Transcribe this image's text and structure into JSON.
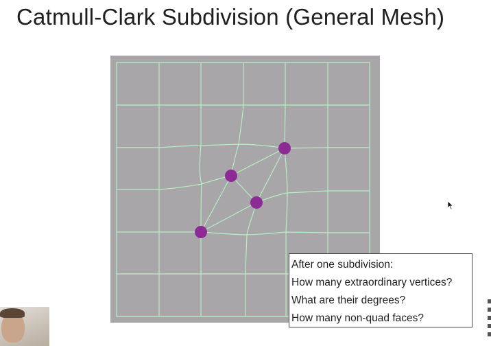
{
  "title": "Catmull-Clark Subdivision (General Mesh)",
  "colors": {
    "mesh_background": "#a8a6a9",
    "mesh_border": "#c5c3c6",
    "grid_line": "#b7efc5",
    "extraordinary_vertex": "#8e2a96",
    "diagonal_edge": "#b7efc5"
  },
  "mesh": {
    "grid_size": 6,
    "extraordinary_vertex_count": 4
  },
  "callout": {
    "lines": [
      "After one subdivision:",
      "How many extraordinary vertices?",
      "What are their degrees?",
      "How many non-quad faces?"
    ]
  },
  "icons": {
    "cursor": "mouse-pointer-icon"
  }
}
